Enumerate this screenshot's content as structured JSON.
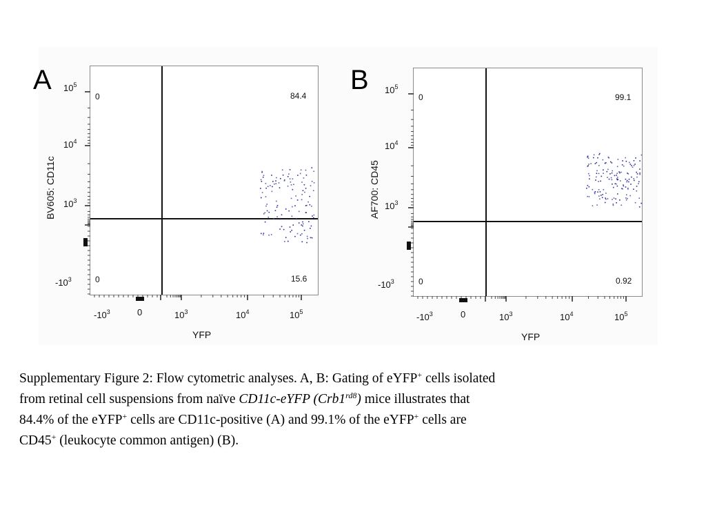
{
  "figure": {
    "panels": [
      {
        "letter": "A",
        "ylabel": "BV605: CD11c",
        "xlabel": "YFP",
        "quadrants": {
          "upper_left": "0",
          "upper_right": "84.4",
          "lower_left": "0",
          "lower_right": "15.6"
        },
        "y_ticks": [
          {
            "base": "10",
            "exp": "5"
          },
          {
            "base": "10",
            "exp": "4"
          },
          {
            "base": "10",
            "exp": "3"
          },
          {
            "base": "-10",
            "exp": "3"
          }
        ],
        "x_ticks": [
          {
            "base": "-10",
            "exp": "3"
          },
          {
            "base": "0",
            "exp": ""
          },
          {
            "base": "10",
            "exp": "3"
          },
          {
            "base": "10",
            "exp": "4"
          },
          {
            "base": "10",
            "exp": "5"
          }
        ]
      },
      {
        "letter": "B",
        "ylabel": "AF700: CD45",
        "xlabel": "YFP",
        "quadrants": {
          "upper_left": "0",
          "upper_right": "99.1",
          "lower_left": "0",
          "lower_right": "0.92"
        },
        "y_ticks": [
          {
            "base": "10",
            "exp": "5"
          },
          {
            "base": "10",
            "exp": "4"
          },
          {
            "base": "10",
            "exp": "3"
          },
          {
            "base": "-10",
            "exp": "3"
          }
        ],
        "x_ticks": [
          {
            "base": "-10",
            "exp": "3"
          },
          {
            "base": "0",
            "exp": ""
          },
          {
            "base": "10",
            "exp": "3"
          },
          {
            "base": "10",
            "exp": "4"
          },
          {
            "base": "10",
            "exp": "5"
          }
        ]
      }
    ]
  },
  "caption": {
    "line1_a": "Supplementary Figure 2: Flow cytometric analyses.  A, B: Gating of eYFP",
    "line1_sup": "+",
    "line1_b": " cells isolated",
    "line2_a": "from retinal cell suspensions from naïve ",
    "line2_italic": "CD11c-eYFP (Crb1",
    "line2_italic_sup": "rd8",
    "line2_italic_end": ")",
    "line2_b": " mice illustrates that",
    "line3_a": "84.4% of the eYFP",
    "line3_sup1": "+",
    "line3_b": " cells are CD11c-positive (A) and 99.1% of the eYFP",
    "line3_sup2": "+",
    "line3_c": " cells are",
    "line4_a": "CD45",
    "line4_sup": "+",
    "line4_b": " (leukocyte common antigen) (B)."
  }
}
